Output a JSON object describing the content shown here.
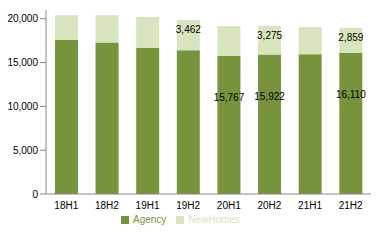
{
  "chart_data": {
    "type": "bar",
    "stacked": true,
    "data_labels": true,
    "grid": false,
    "legend": "bottom",
    "categories": [
      "18H1",
      "18H2",
      "19H1",
      "19H2",
      "20H1",
      "20H2",
      "21H1",
      "21H2"
    ],
    "ylim": [
      0,
      21000
    ],
    "yticks": [
      0,
      {
        "value": 5000,
        "label": "5,000"
      },
      {
        "value": 10000,
        "label": "10,000"
      },
      {
        "value": 15000,
        "label": "15,000"
      },
      {
        "value": 20000,
        "label": "20,000"
      }
    ],
    "series": [
      {
        "name": "Agency",
        "color": "#77933c",
        "values": [
          17600,
          17300,
          16700,
          16400,
          15767,
          15922,
          15950,
          16110
        ],
        "value_labels": [
          null,
          null,
          null,
          null,
          "15,767",
          "15,922",
          null,
          "16,110"
        ]
      },
      {
        "name": "NewHomes",
        "color": "#d7e4bd",
        "values": [
          2800,
          3100,
          3500,
          3462,
          3400,
          3275,
          3100,
          2859
        ],
        "value_labels": [
          null,
          null,
          null,
          "3,462",
          null,
          "3,275",
          null,
          "2,859"
        ]
      }
    ]
  }
}
